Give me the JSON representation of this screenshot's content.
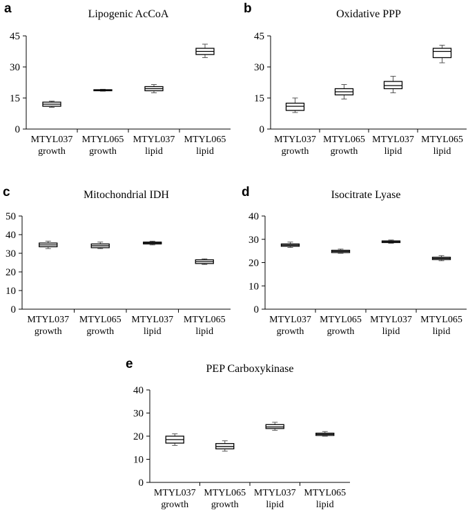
{
  "chart_data": [
    {
      "panel": "a",
      "type": "box",
      "title": "Lipogenic AcCoA",
      "categories": [
        "MTYL037 growth",
        "MTYL065 growth",
        "MTYL037 lipid",
        "MTYL065 lipid"
      ],
      "category_lines": [
        [
          "MTYL037",
          "growth"
        ],
        [
          "MTYL065",
          "growth"
        ],
        [
          "MTYL037",
          "lipid"
        ],
        [
          "MTYL065",
          "lipid"
        ]
      ],
      "yticks": [
        0,
        15,
        30,
        45
      ],
      "ylim": [
        0,
        45
      ],
      "boxes": [
        {
          "min": 10.5,
          "q1": 11.0,
          "median": 12.0,
          "q3": 13.0,
          "max": 13.5
        },
        {
          "min": 18.3,
          "q1": 18.5,
          "median": 18.7,
          "q3": 19.0,
          "max": 19.2
        },
        {
          "min": 17.5,
          "q1": 18.5,
          "median": 19.5,
          "q3": 20.5,
          "max": 21.5
        },
        {
          "min": 34.5,
          "q1": 36.0,
          "median": 37.5,
          "q3": 39.0,
          "max": 41.0
        }
      ]
    },
    {
      "panel": "b",
      "type": "box",
      "title": "Oxidative PPP",
      "categories": [
        "MTYL037 growth",
        "MTYL065 growth",
        "MTYL037 lipid",
        "MTYL065 lipid"
      ],
      "category_lines": [
        [
          "MTYL037",
          "growth"
        ],
        [
          "MTYL065",
          "growth"
        ],
        [
          "MTYL037",
          "lipid"
        ],
        [
          "MTYL065",
          "lipid"
        ]
      ],
      "yticks": [
        0,
        15,
        30,
        45
      ],
      "ylim": [
        0,
        45
      ],
      "boxes": [
        {
          "min": 8.0,
          "q1": 9.0,
          "median": 11.0,
          "q3": 12.5,
          "max": 15.0
        },
        {
          "min": 14.5,
          "q1": 16.5,
          "median": 18.0,
          "q3": 19.5,
          "max": 21.5
        },
        {
          "min": 17.5,
          "q1": 19.5,
          "median": 21.0,
          "q3": 23.0,
          "max": 25.5
        },
        {
          "min": 32.0,
          "q1": 34.5,
          "median": 37.5,
          "q3": 39.0,
          "max": 40.5
        }
      ]
    },
    {
      "panel": "c",
      "type": "box",
      "title": "Mitochondrial IDH",
      "categories": [
        "MTYL037 growth",
        "MTYL065 growth",
        "MTYL037 lipid",
        "MTYL065 lipid"
      ],
      "category_lines": [
        [
          "MTYL037",
          "growth"
        ],
        [
          "MTYL065",
          "growth"
        ],
        [
          "MTYL037",
          "lipid"
        ],
        [
          "MTYL065",
          "lipid"
        ]
      ],
      "yticks": [
        0,
        10,
        20,
        30,
        40,
        50
      ],
      "ylim": [
        0,
        50
      ],
      "boxes": [
        {
          "min": 32.5,
          "q1": 33.5,
          "median": 34.5,
          "q3": 35.5,
          "max": 36.5
        },
        {
          "min": 32.5,
          "q1": 33.0,
          "median": 34.0,
          "q3": 35.0,
          "max": 36.0
        },
        {
          "min": 34.5,
          "q1": 35.0,
          "median": 35.5,
          "q3": 36.0,
          "max": 36.5
        },
        {
          "min": 24.0,
          "q1": 24.5,
          "median": 25.5,
          "q3": 26.5,
          "max": 27.0
        }
      ]
    },
    {
      "panel": "d",
      "type": "box",
      "title": "Isocitrate Lyase",
      "categories": [
        "MTYL037 growth",
        "MTYL065 growth",
        "MTYL037 lipid",
        "MTYL065 lipid"
      ],
      "category_lines": [
        [
          "MTYL037",
          "growth"
        ],
        [
          "MTYL065",
          "growth"
        ],
        [
          "MTYL037",
          "lipid"
        ],
        [
          "MTYL065",
          "lipid"
        ]
      ],
      "yticks": [
        0,
        10,
        20,
        30,
        40
      ],
      "ylim": [
        0,
        40
      ],
      "boxes": [
        {
          "min": 26.5,
          "q1": 27.0,
          "median": 27.5,
          "q3": 28.0,
          "max": 28.8
        },
        {
          "min": 24.0,
          "q1": 24.3,
          "median": 24.8,
          "q3": 25.3,
          "max": 25.8
        },
        {
          "min": 28.3,
          "q1": 28.6,
          "median": 29.0,
          "q3": 29.3,
          "max": 29.7
        },
        {
          "min": 20.8,
          "q1": 21.3,
          "median": 21.8,
          "q3": 22.3,
          "max": 23.0
        }
      ]
    },
    {
      "panel": "e",
      "type": "box",
      "title": "PEP Carboxykinase",
      "categories": [
        "MTYL037 growth",
        "MTYL065 growth",
        "MTYL037 lipid",
        "MTYL065 lipid"
      ],
      "category_lines": [
        [
          "MTYL037",
          "growth"
        ],
        [
          "MTYL065",
          "growth"
        ],
        [
          "MTYL037",
          "lipid"
        ],
        [
          "MTYL065",
          "lipid"
        ]
      ],
      "yticks": [
        0,
        10,
        20,
        30,
        40
      ],
      "ylim": [
        0,
        40
      ],
      "boxes": [
        {
          "min": 16.0,
          "q1": 17.0,
          "median": 18.5,
          "q3": 20.0,
          "max": 21.0
        },
        {
          "min": 13.5,
          "q1": 14.5,
          "median": 15.5,
          "q3": 16.8,
          "max": 18.0
        },
        {
          "min": 22.5,
          "q1": 23.3,
          "median": 24.0,
          "q3": 25.0,
          "max": 26.0
        },
        {
          "min": 20.0,
          "q1": 20.3,
          "median": 20.8,
          "q3": 21.3,
          "max": 22.0
        }
      ]
    }
  ]
}
